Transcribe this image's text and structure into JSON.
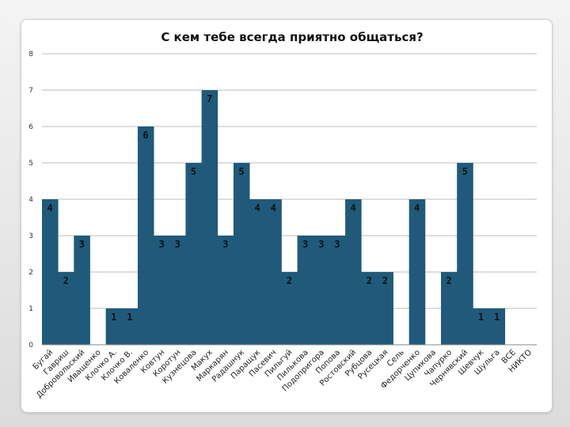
{
  "chart_data": {
    "type": "bar",
    "title": "С кем тебе всегда приятно общаться?",
    "xlabel": "",
    "ylabel": "",
    "ylim": [
      0,
      8
    ],
    "yticks": [
      0,
      1,
      2,
      3,
      4,
      5,
      6,
      7,
      8
    ],
    "grid": true,
    "bar_color": "#1f5a7a",
    "categories": [
      "Бугай",
      "Гавриш",
      "Добровольский",
      "Иващенко",
      "Клочко А.",
      "Клочко В.",
      "Коваленко",
      "Ковтун",
      "Коротун",
      "Кузнецова",
      "Макух",
      "Маркарян",
      "Радашнук",
      "Паращук",
      "Пасевич",
      "Пильгуй",
      "Пилькова",
      "Подопригора",
      "Попова",
      "Ростовский",
      "Рубцова",
      "Русецкая",
      "Сель",
      "Федорченко",
      "Цупикова",
      "Чапурко",
      "Чернявский",
      "Шевчук",
      "Шульга",
      "ВСЕ",
      "НИКТО"
    ],
    "values": [
      4,
      2,
      3,
      0,
      1,
      1,
      6,
      3,
      3,
      5,
      7,
      3,
      5,
      4,
      4,
      2,
      3,
      3,
      3,
      4,
      2,
      2,
      0,
      4,
      0,
      2,
      5,
      1,
      1,
      0,
      0
    ]
  }
}
